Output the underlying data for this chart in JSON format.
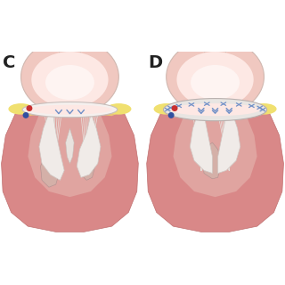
{
  "bg_color": "#ffffff",
  "heart_dark_pink": "#d98888",
  "heart_mid_pink": "#e09898",
  "heart_light_inner": "#f0c8c0",
  "atrium_outer": "#f0c8c0",
  "atrium_inner": "#fde8e4",
  "atrium_highlight": "#fef4f2",
  "yellow_fat": "#f0e070",
  "yellow_fat2": "#e8d860",
  "annulus_white": "#f5f0ee",
  "annulus_outline": "#c8bfbc",
  "ring_white": "#f2efed",
  "ring_border": "#b8b0ae",
  "blue_stitch": "#7090c8",
  "blue_stitch_dark": "#5070a8",
  "red_dot": "#c83030",
  "blue_dot": "#3050a0",
  "chordae_col": "#e8e0dc",
  "leaflet_col": "#f0ebe8",
  "leaflet_edge": "#d0c8c4",
  "papillary_col": "#d4b0a8",
  "papillary_edge": "#b89090",
  "ventricle_inner": "#e8c0b8",
  "panel_label_size": 14
}
